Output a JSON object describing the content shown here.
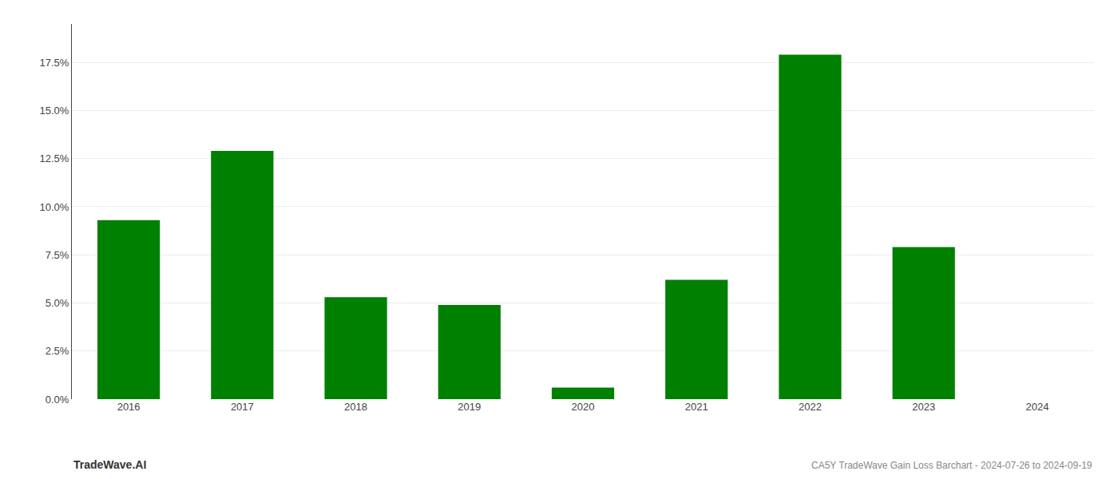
{
  "chart_data": {
    "type": "bar",
    "categories": [
      "2016",
      "2017",
      "2018",
      "2019",
      "2020",
      "2021",
      "2022",
      "2023",
      "2024"
    ],
    "values": [
      0.093,
      0.129,
      0.053,
      0.049,
      0.006,
      0.062,
      0.179,
      0.079,
      0.0
    ],
    "color": "#008000",
    "ylim": [
      0,
      0.195
    ],
    "yticks": [
      {
        "value": 0.0,
        "label": "0.0%"
      },
      {
        "value": 0.025,
        "label": "2.5%"
      },
      {
        "value": 0.05,
        "label": "5.0%"
      },
      {
        "value": 0.075,
        "label": "7.5%"
      },
      {
        "value": 0.1,
        "label": "10.0%"
      },
      {
        "value": 0.125,
        "label": "12.5%"
      },
      {
        "value": 0.15,
        "label": "15.0%"
      },
      {
        "value": 0.175,
        "label": "17.5%"
      }
    ],
    "grid": true,
    "annotations": [
      "TradeWave.AI",
      "CA5Y TradeWave Gain Loss Barchart - 2024-07-26 to 2024-09-19"
    ]
  }
}
